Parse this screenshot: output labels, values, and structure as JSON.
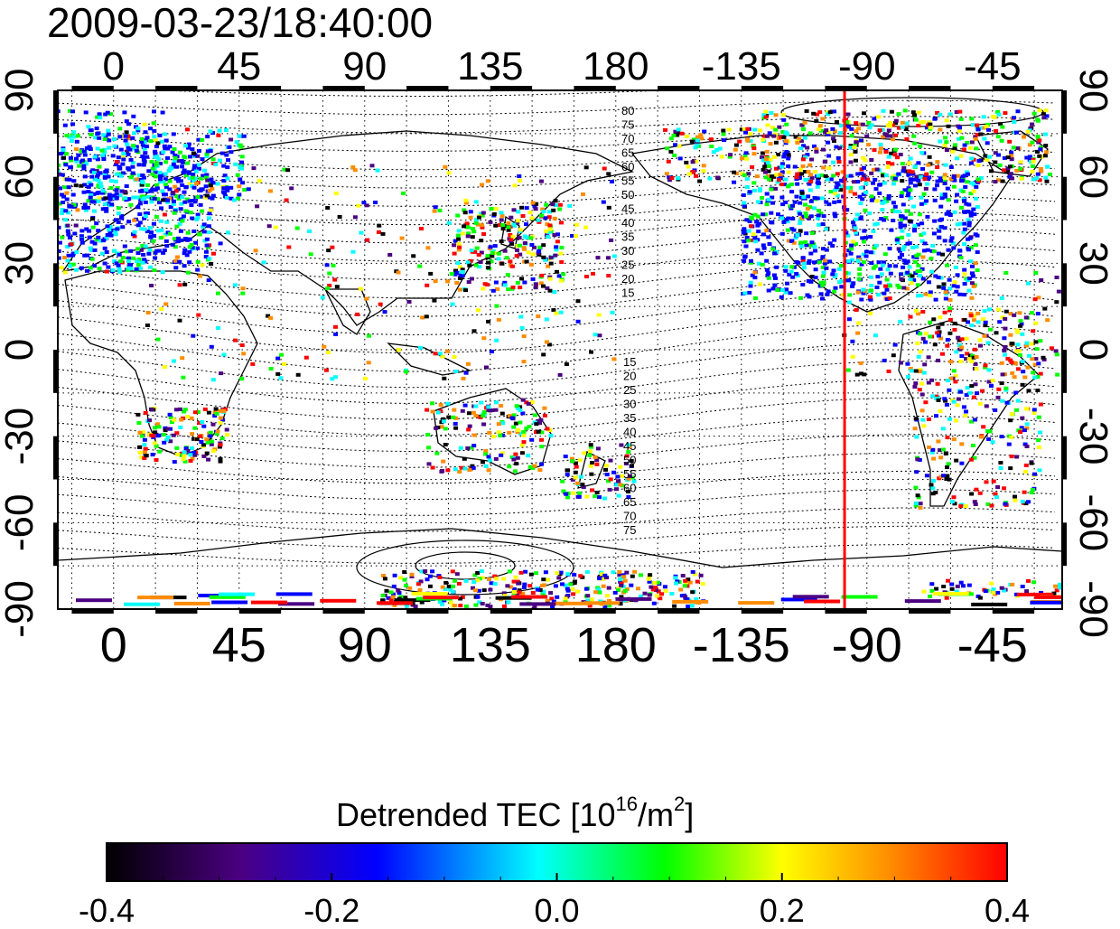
{
  "timestamp": "2009-03-23/18:40:00",
  "map": {
    "type": "detrended-tec-world-map",
    "lon_tick_labels": [
      "0",
      "45",
      "90",
      "135",
      "180",
      "-135",
      "-90",
      "-45"
    ],
    "lat_tick_labels": [
      "90",
      "60",
      "30",
      "0",
      "-30",
      "-60",
      "-90"
    ],
    "lon_ticks_deg": [
      0,
      45,
      90,
      135,
      180,
      225,
      270,
      315
    ],
    "lat_ticks_deg": [
      90,
      60,
      30,
      0,
      -30,
      -60,
      -90
    ],
    "lon_range_deg": [
      -20,
      340
    ],
    "lat_range_deg": [
      -90,
      90
    ],
    "grid": "dotted every 15 degrees",
    "highlight_meridian_lon": "-98",
    "highlight_color": "#ff0000",
    "magnetic_lat_labels_north": [
      "80",
      "75",
      "70",
      "65",
      "60",
      "55",
      "50",
      "45",
      "40",
      "35",
      "30",
      "25",
      "20",
      "15"
    ],
    "magnetic_lat_labels_south": [
      "15",
      "20",
      "25",
      "30",
      "35",
      "40",
      "45",
      "50",
      "55",
      "60",
      "65",
      "70",
      "75"
    ]
  },
  "colorbar": {
    "title_prefix": "Detrended TEC  [10",
    "title_exp1": "16",
    "title_mid": "/m",
    "title_exp2": "2",
    "title_suffix": "]",
    "tick_labels": [
      "-0.4",
      "-0.2",
      "0.0",
      "0.2",
      "0.4"
    ],
    "range": [
      -0.4,
      0.4
    ],
    "colors": [
      "#000000",
      "#4b0082",
      "#0000ff",
      "#00ffff",
      "#00ff00",
      "#ffff00",
      "#ff8c00",
      "#ff0000"
    ]
  }
}
